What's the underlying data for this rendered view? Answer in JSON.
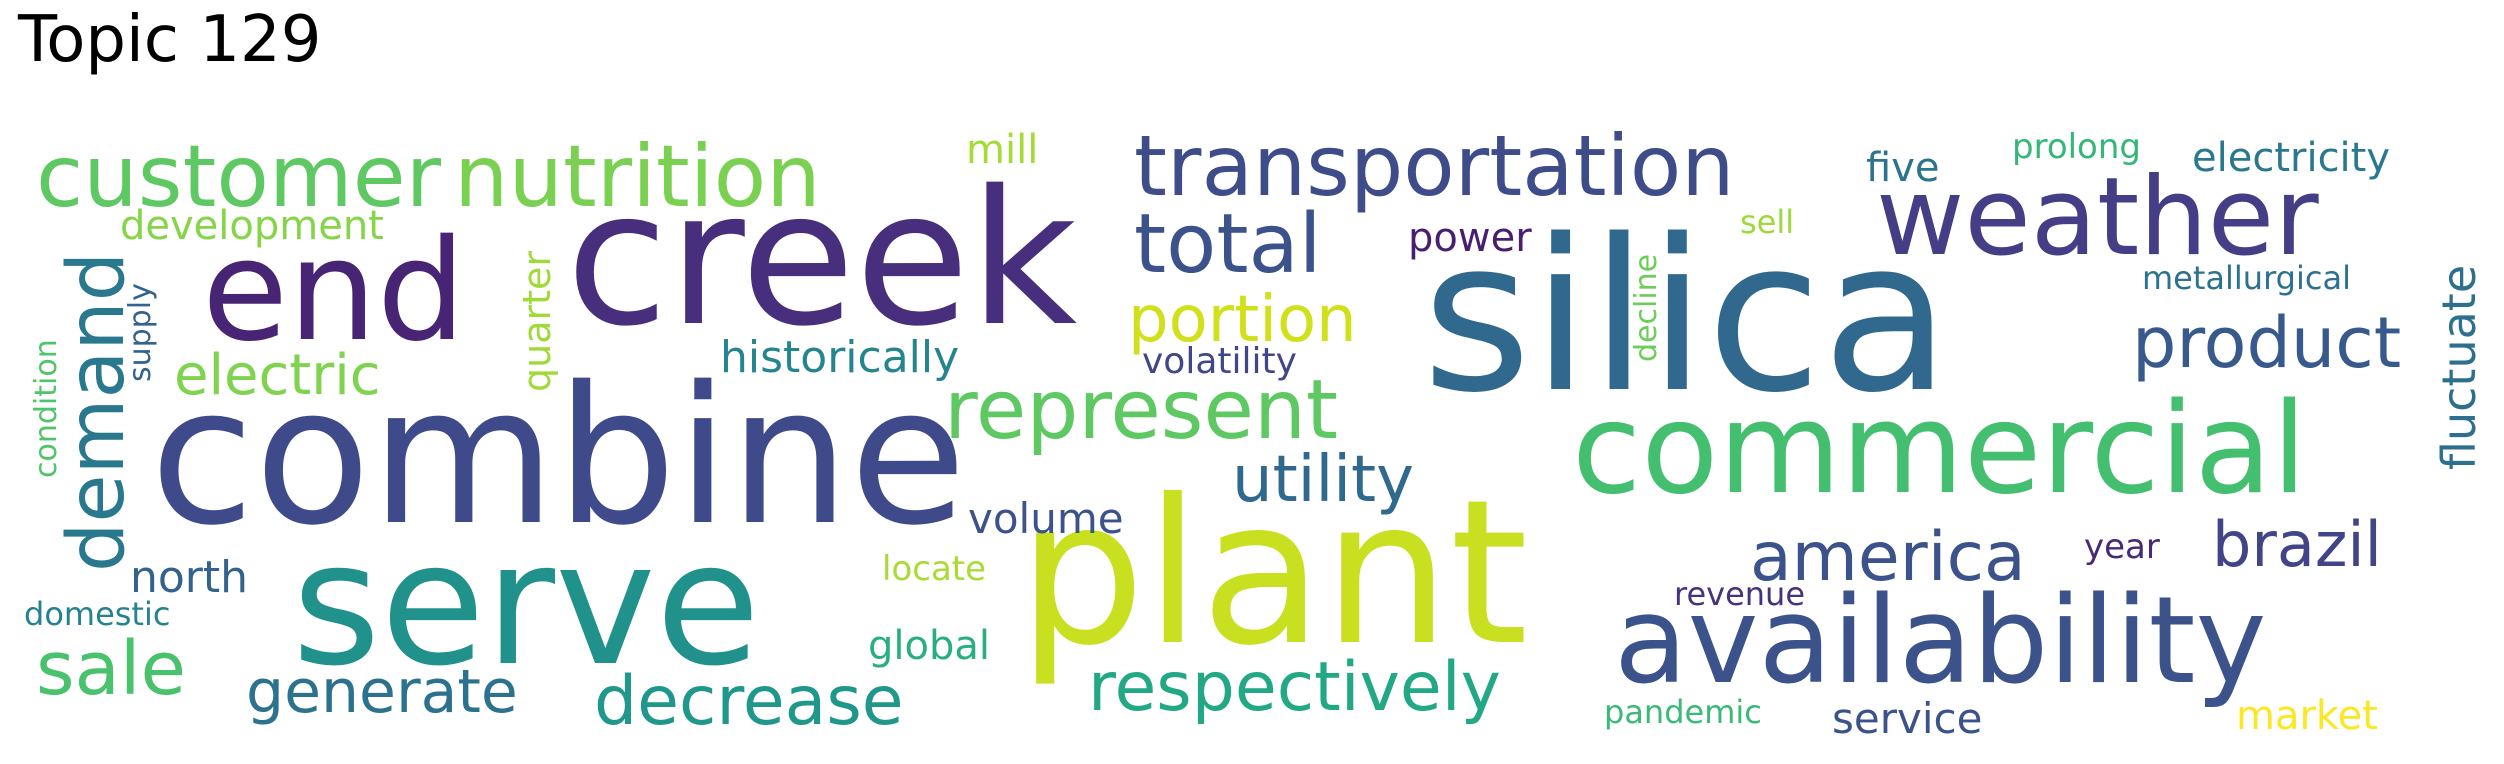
{
  "title": "Topic 129",
  "words": [
    {
      "text": "silica",
      "color": "#31688e"
    },
    {
      "text": "plant",
      "color": "#c8e020"
    },
    {
      "text": "combine",
      "color": "#3e4a89"
    },
    {
      "text": "creek",
      "color": "#472f7d"
    },
    {
      "text": "serve",
      "color": "#21918c"
    },
    {
      "text": "commercial",
      "color": "#44bf70"
    },
    {
      "text": "availability",
      "color": "#3b528b"
    },
    {
      "text": "end",
      "color": "#482475"
    },
    {
      "text": "weather",
      "color": "#433e85"
    },
    {
      "text": "transportation",
      "color": "#3e4c8a"
    },
    {
      "text": "customer",
      "color": "#5ec962"
    },
    {
      "text": "nutrition",
      "color": "#7ad151"
    },
    {
      "text": "total",
      "color": "#3b528b"
    },
    {
      "text": "represent",
      "color": "#5ec962"
    },
    {
      "text": "demand",
      "color": "#2a788e"
    },
    {
      "text": "product",
      "color": "#38598c"
    },
    {
      "text": "america",
      "color": "#3b528b"
    },
    {
      "text": "decrease",
      "color": "#1f988b"
    },
    {
      "text": "respectively",
      "color": "#22a884"
    },
    {
      "text": "sale",
      "color": "#4ac16d"
    },
    {
      "text": "generate",
      "color": "#2c728e"
    },
    {
      "text": "utility",
      "color": "#30698e"
    },
    {
      "text": "portion",
      "color": "#d0e11c"
    },
    {
      "text": "brazil",
      "color": "#414487"
    },
    {
      "text": "electric",
      "color": "#7fd34e"
    },
    {
      "text": "historically",
      "color": "#25858e"
    },
    {
      "text": "fluctuate",
      "color": "#2e6f8e"
    },
    {
      "text": "north",
      "color": "#33638d"
    },
    {
      "text": "volume",
      "color": "#3b528b"
    },
    {
      "text": "service",
      "color": "#3b528b"
    },
    {
      "text": "global",
      "color": "#29af7f"
    },
    {
      "text": "electricity",
      "color": "#2a788e"
    },
    {
      "text": "development",
      "color": "#86d549"
    },
    {
      "text": "mill",
      "color": "#a5db36"
    },
    {
      "text": "five",
      "color": "#2c738e"
    },
    {
      "text": "power",
      "color": "#481f70"
    },
    {
      "text": "market",
      "color": "#fde725"
    },
    {
      "text": "quarter",
      "color": "#a0da39"
    },
    {
      "text": "volatility",
      "color": "#3f4788"
    },
    {
      "text": "prolong",
      "color": "#35b779"
    },
    {
      "text": "metallurgical",
      "color": "#2c728e"
    },
    {
      "text": "locate",
      "color": "#a8db34"
    },
    {
      "text": "year",
      "color": "#482878"
    },
    {
      "text": "revenue",
      "color": "#46327e"
    },
    {
      "text": "pandemic",
      "color": "#3aba76"
    },
    {
      "text": "domestic",
      "color": "#26828e"
    },
    {
      "text": "supply",
      "color": "#33638d"
    },
    {
      "text": "condition",
      "color": "#4fc46a"
    },
    {
      "text": "decline",
      "color": "#6ccd5a"
    },
    {
      "text": "sell",
      "color": "#9dd93b"
    }
  ]
}
